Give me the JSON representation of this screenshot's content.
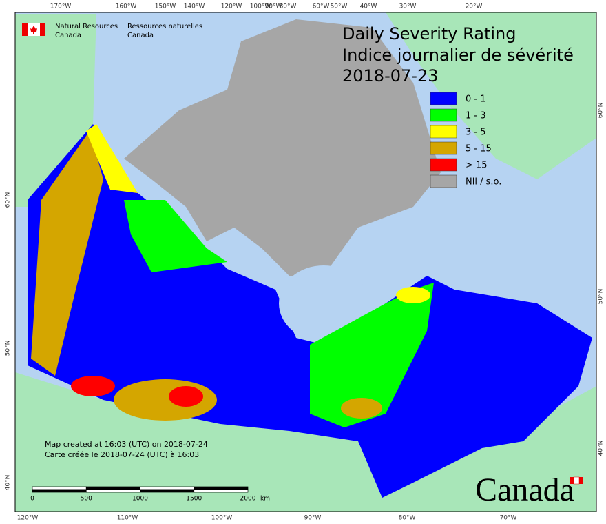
{
  "header": {
    "org_en": [
      "Natural Resources",
      "Canada"
    ],
    "org_fr": [
      "Ressources naturelles",
      "Canada"
    ]
  },
  "title": {
    "en": "Daily Severity Rating",
    "fr": "Indice journalier de sévérité",
    "date": "2018-07-23"
  },
  "legend": [
    {
      "label": "0 - 1",
      "color": "#0000ff"
    },
    {
      "label": "1 - 3",
      "color": "#00ff00"
    },
    {
      "label": "3 - 5",
      "color": "#ffff00"
    },
    {
      "label": "5 - 15",
      "color": "#d4a600"
    },
    {
      "label": "> 15",
      "color": "#ff0000"
    },
    {
      "label": "Nil / s.o.",
      "color": "#a6a6a6"
    }
  ],
  "notes": [
    "Map created at 16:03 (UTC) on 2018-07-24",
    "Carte créée le 2018-07-24 (UTC) à 16:03"
  ],
  "scale_bar": {
    "ticks": [
      0,
      500,
      1000,
      1500,
      2000
    ],
    "unit": "km"
  },
  "graticule": {
    "top": [
      "170°W",
      "160°W",
      "150°W",
      "140°W",
      "120°W",
      "100°W",
      "90°W",
      "80°W",
      "60°W",
      "50°W",
      "40°W",
      "30°W",
      "20°W"
    ],
    "bottom": [
      "120°W",
      "110°W",
      "100°W",
      "90°W",
      "80°W",
      "70°W"
    ],
    "left": [
      "60°N",
      "50°N",
      "40°N"
    ],
    "right": [
      "60°N",
      "50°N",
      "40°N"
    ]
  },
  "wordmark": "Canada"
}
